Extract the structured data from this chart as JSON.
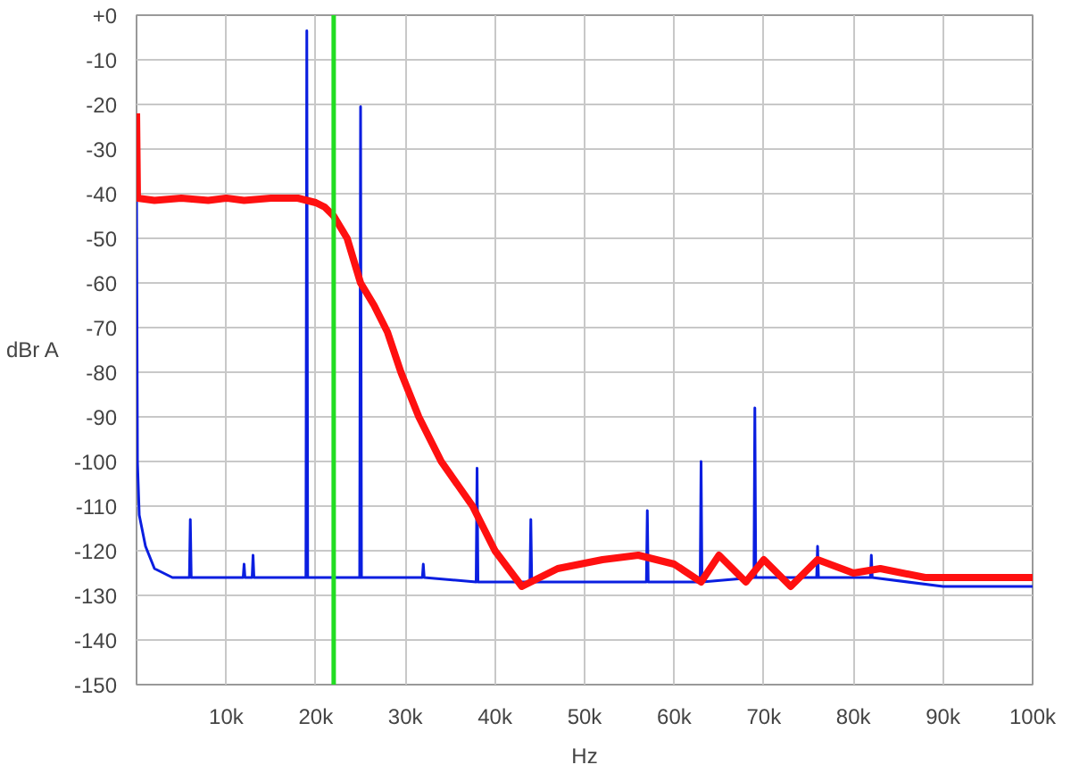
{
  "chart_data": {
    "type": "line",
    "xlabel": "Hz",
    "ylabel": "dBr A",
    "xlim": [
      0,
      100000
    ],
    "ylim": [
      -150,
      0
    ],
    "xticks": [
      {
        "value": 10000,
        "label": "10k"
      },
      {
        "value": 20000,
        "label": "20k"
      },
      {
        "value": 30000,
        "label": "30k"
      },
      {
        "value": 40000,
        "label": "40k"
      },
      {
        "value": 50000,
        "label": "50k"
      },
      {
        "value": 60000,
        "label": "60k"
      },
      {
        "value": 70000,
        "label": "70k"
      },
      {
        "value": 80000,
        "label": "80k"
      },
      {
        "value": 90000,
        "label": "90k"
      },
      {
        "value": 100000,
        "label": "100k"
      }
    ],
    "yticks": [
      {
        "value": 0,
        "label": "+0"
      },
      -10,
      -20,
      -30,
      -40,
      -50,
      -60,
      -70,
      -80,
      -90,
      -100,
      -110,
      -120,
      -130,
      -140,
      -150
    ],
    "grid": true,
    "ref_lines": [
      {
        "axis": "x",
        "value": 22000,
        "label": null,
        "color": "#22dd22"
      }
    ],
    "series": [
      {
        "color": "#0a1ee0",
        "x": [
          0,
          100,
          300,
          1000,
          2000,
          4000,
          5900,
          6000,
          6100,
          11900,
          12000,
          12100,
          12900,
          13000,
          13100,
          18900,
          19000,
          19100,
          24900,
          25000,
          25100,
          31900,
          32000,
          32100,
          37900,
          38000,
          38100,
          43900,
          44000,
          44100,
          50000,
          56900,
          57000,
          57100,
          62900,
          63000,
          63100,
          68900,
          69000,
          69100,
          75900,
          76000,
          76100,
          81900,
          82000,
          82100,
          90000,
          100000
        ],
        "values": [
          -40,
          -100,
          -112,
          -119,
          -124,
          -126,
          -126,
          -113,
          -126,
          -126,
          -123,
          -126,
          -126,
          -121,
          -126,
          -126,
          -3.5,
          -126,
          -126,
          -20.5,
          -126,
          -126,
          -123,
          -126,
          -127,
          -101.5,
          -127,
          -127,
          -113,
          -127,
          -127,
          -127,
          -111,
          -127,
          -127,
          -100,
          -127,
          -126,
          -88,
          -126,
          -126,
          -119,
          -126,
          -126,
          -121,
          -126,
          -128,
          -128
        ]
      },
      {
        "color": "#ff1010",
        "x": [
          0,
          100,
          2000,
          5000,
          8000,
          10000,
          12000,
          15000,
          18000,
          19000,
          20000,
          21000,
          22000,
          23500,
          25000,
          26500,
          28000,
          29500,
          31500,
          34000,
          37500,
          40000,
          43000,
          47000,
          52000,
          56000,
          60000,
          63000,
          65000,
          68000,
          70000,
          73000,
          76000,
          80000,
          83000,
          88000,
          94000,
          100000
        ],
        "values": [
          -22,
          -41,
          -41.5,
          -41,
          -41.5,
          -41,
          -41.5,
          -41,
          -41,
          -41.5,
          -42,
          -43,
          -45,
          -50,
          -60,
          -65,
          -71,
          -80,
          -90,
          -100,
          -110,
          -120,
          -128,
          -124,
          -122,
          -121,
          -123,
          -127,
          -121,
          -127,
          -122,
          -128,
          -122,
          -125,
          -124,
          -126,
          -126,
          -126
        ]
      }
    ]
  }
}
